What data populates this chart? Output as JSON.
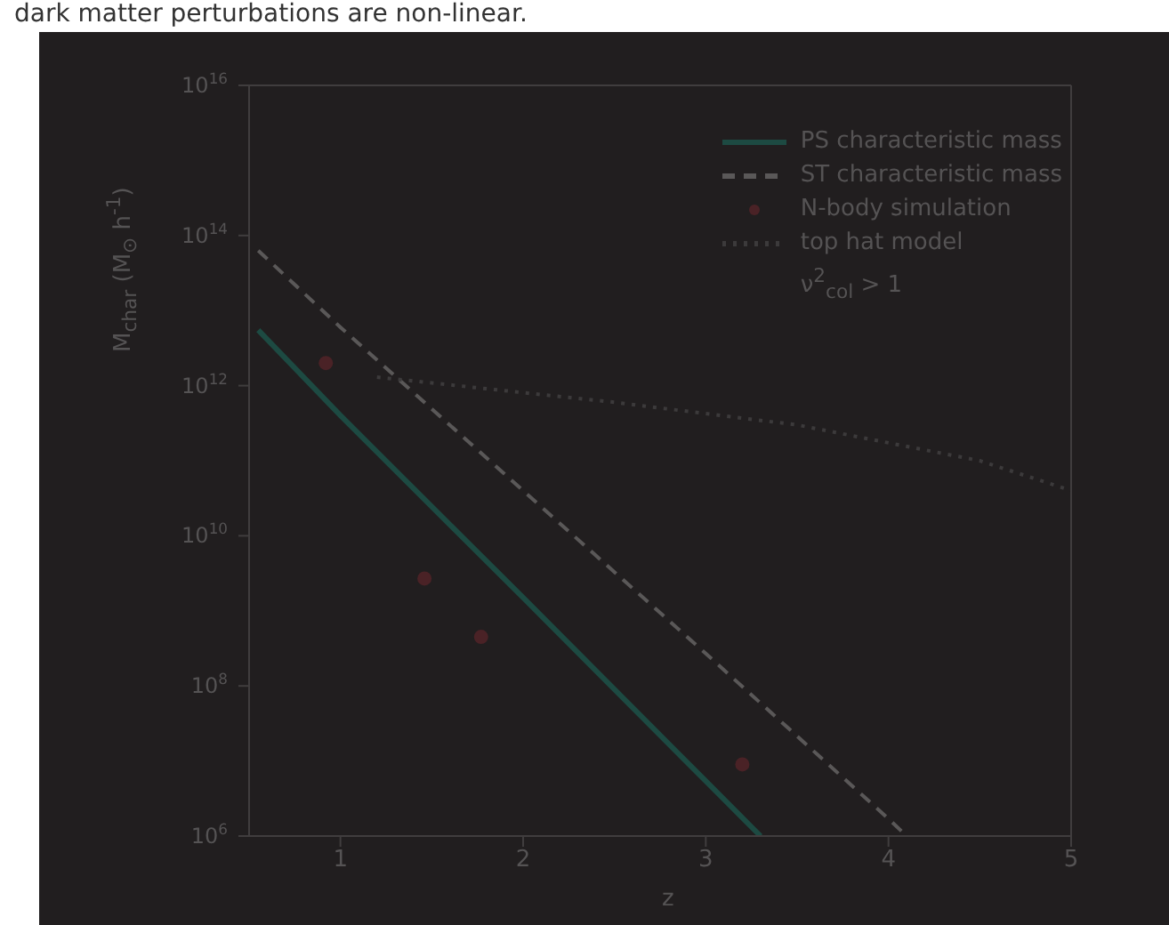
{
  "chart_data": {
    "type": "line",
    "title": "dark matter perturbations are non-linear.",
    "xlabel": "z",
    "ylabel": "M$_{char}$ (M$_{⊙}$ h$^{-1}$)",
    "log": "y",
    "xlim": [
      0.5,
      5
    ],
    "xticks": [
      1,
      2,
      3,
      4,
      5
    ],
    "ylim": [
      1000000.0,
      1e+16
    ],
    "yticks": [
      {
        "value": 1000000.0,
        "label": "10$^{6}$"
      },
      {
        "value": 100000000.0,
        "label": "10$^{8}$"
      },
      {
        "value": 10000000000.0,
        "label": "10$^{10}$"
      },
      {
        "value": 1000000000000.0,
        "label": "10$^{12}$"
      },
      {
        "value": 100000000000000.0,
        "label": "10$^{14}$"
      },
      {
        "value": 1e+16,
        "label": "10$^{16}$"
      }
    ],
    "legend": "top right",
    "grid": false,
    "annotations": [
      "ν$^{2}$$_{col}$ > 1"
    ],
    "series": [
      {
        "name": "PS characteristic mass",
        "line_style": "solid",
        "color": "#1d4a42",
        "x": [
          0.55,
          1,
          2,
          3,
          3.3
        ],
        "values": [
          5500000000000.0,
          400000000000.0,
          1500000000.0,
          5400000.0,
          1000000.0
        ]
      },
      {
        "name": "ST characteristic mass",
        "line_style": "dashed",
        "color": "#5a5858",
        "x": [
          0.55,
          1,
          2,
          3,
          4,
          4.1
        ],
        "values": [
          63000000000000.0,
          6000000000000.0,
          40000000000.0,
          270000000.0,
          1700000.0,
          1000000.0
        ]
      },
      {
        "name": "N-body simulation",
        "type": "scatter",
        "marker": "circle",
        "color": "#4a2226",
        "x": [
          0.92,
          1.46,
          1.77,
          3.2
        ],
        "values": [
          2000000000000.0,
          2700000000.0,
          450000000.0,
          9000000.0
        ]
      },
      {
        "name": "top hat model",
        "line_style": "dotted",
        "color": "#3c3a3b",
        "x": [
          1.2,
          2.5,
          3.5,
          4.5,
          5
        ],
        "values": [
          1300000000000.0,
          600000000000.0,
          300000000000.0,
          100000000000.0,
          40000000000.0
        ]
      }
    ]
  }
}
